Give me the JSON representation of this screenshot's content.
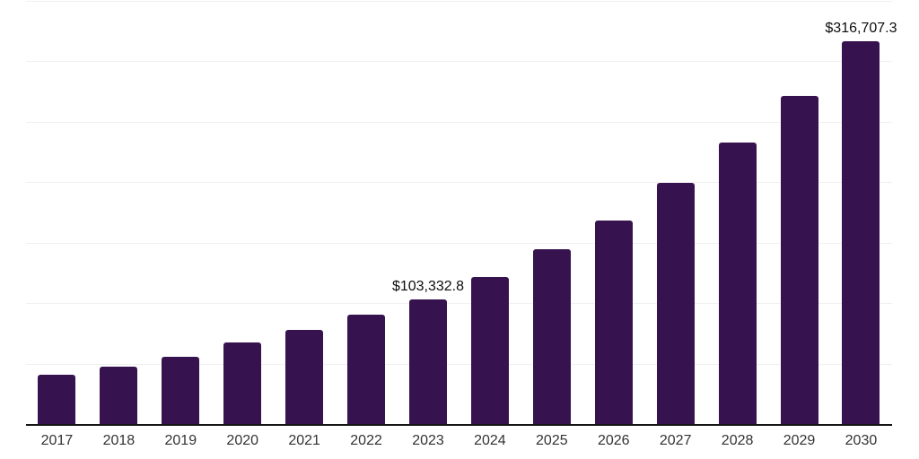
{
  "chart": {
    "colors": {
      "background": "#ffffff",
      "bar": "#36134f",
      "grid": "#f0f0f0",
      "axis": "#141414",
      "value_label": "#0d0d0d",
      "tick_label": "#333333"
    }
  },
  "chart_data": {
    "type": "bar",
    "title": "",
    "xlabel": "",
    "ylabel": "",
    "legend": "none",
    "grid": "horizontal",
    "ylim": [
      0,
      350000
    ],
    "gridline_step": 50000,
    "categories": [
      "2017",
      "2018",
      "2019",
      "2020",
      "2021",
      "2022",
      "2023",
      "2024",
      "2025",
      "2026",
      "2027",
      "2028",
      "2029",
      "2030"
    ],
    "values": [
      40500,
      47400,
      55800,
      67600,
      77600,
      90600,
      103332.8,
      122000,
      144300,
      168400,
      199300,
      233200,
      271400,
      316707.3
    ],
    "data_labels": [
      {
        "category": "2023",
        "text": "$103,332.8"
      },
      {
        "category": "2030",
        "text": "$316,707.3"
      }
    ]
  }
}
